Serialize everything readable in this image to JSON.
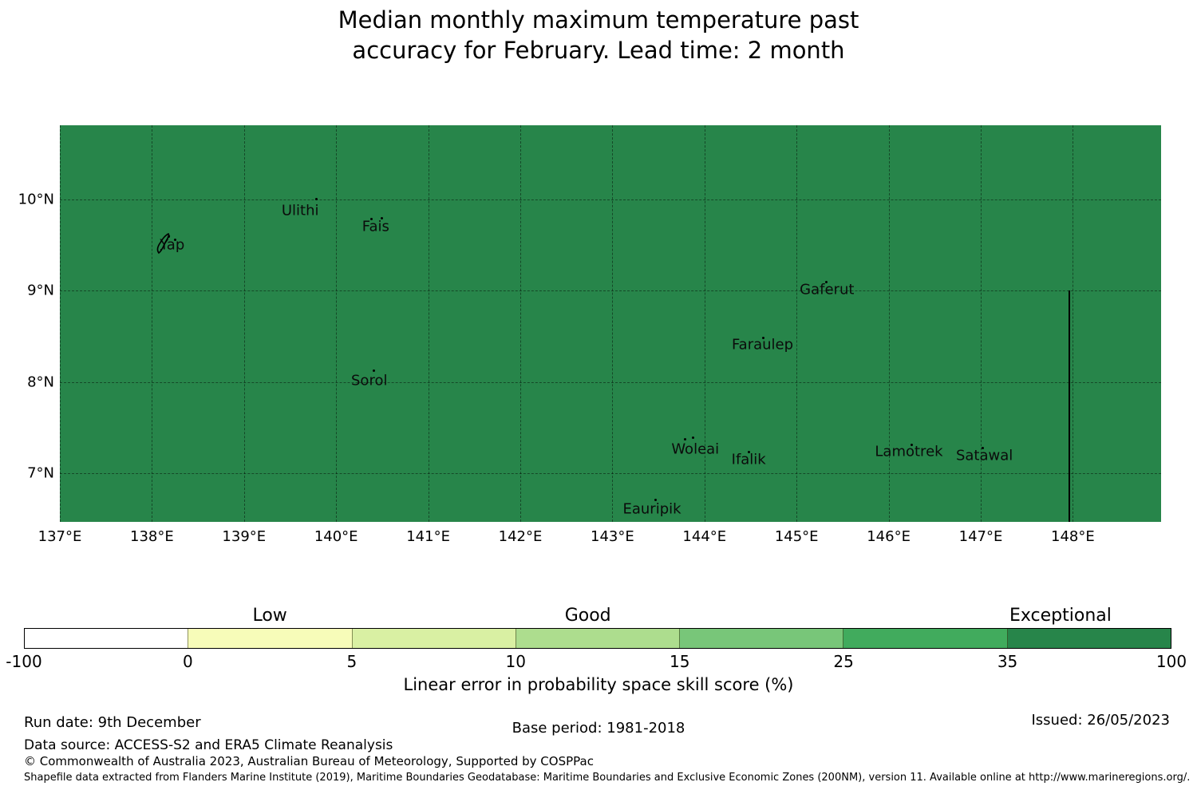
{
  "title": {
    "line1": "Median monthly maximum temperature past",
    "line2": "accuracy for February. Lead time: 2 month"
  },
  "map": {
    "fill_color": "#27854A",
    "x_ticks": [
      {
        "label": "137°E",
        "lon": 137
      },
      {
        "label": "138°E",
        "lon": 138
      },
      {
        "label": "139°E",
        "lon": 139
      },
      {
        "label": "140°E",
        "lon": 140
      },
      {
        "label": "141°E",
        "lon": 141
      },
      {
        "label": "142°E",
        "lon": 142
      },
      {
        "label": "143°E",
        "lon": 143
      },
      {
        "label": "144°E",
        "lon": 144
      },
      {
        "label": "145°E",
        "lon": 145
      },
      {
        "label": "146°E",
        "lon": 146
      },
      {
        "label": "147°E",
        "lon": 147
      },
      {
        "label": "148°E",
        "lon": 148
      }
    ],
    "y_ticks": [
      {
        "label": "10°N",
        "lat": 10
      },
      {
        "label": "9°N",
        "lat": 9
      },
      {
        "label": "8°N",
        "lat": 8
      },
      {
        "label": "7°N",
        "lat": 7
      }
    ],
    "islands": [
      {
        "name": "Yap",
        "lon": 138.22,
        "lat": 9.5,
        "marker": "blob",
        "dots": [
          [
            -6,
            -12
          ],
          [
            2,
            -8
          ]
        ]
      },
      {
        "name": "Ulithi",
        "lon": 139.61,
        "lat": 9.88,
        "dots": [
          [
            19,
            -16
          ]
        ]
      },
      {
        "name": "Fais",
        "lon": 140.43,
        "lat": 9.7,
        "dots": [
          [
            -7,
            -11
          ],
          [
            6,
            -12
          ]
        ]
      },
      {
        "name": "Sorol",
        "lon": 140.36,
        "lat": 8.02,
        "dots": [
          [
            4,
            -14
          ]
        ]
      },
      {
        "name": "Gaferut",
        "lon": 145.33,
        "lat": 9.01,
        "dots": [
          [
            -2,
            -11
          ]
        ]
      },
      {
        "name": "Faraulep",
        "lon": 144.63,
        "lat": 8.41,
        "dots": [
          [
            -1,
            -10
          ]
        ]
      },
      {
        "name": "Woleai",
        "lon": 143.9,
        "lat": 7.26,
        "dots": [
          [
            -14,
            -14
          ],
          [
            -4,
            -16
          ]
        ]
      },
      {
        "name": "Ifalik",
        "lon": 144.48,
        "lat": 7.15,
        "dots": [
          [
            -1,
            -11
          ]
        ]
      },
      {
        "name": "Eauripik",
        "lon": 143.43,
        "lat": 6.61,
        "dots": [
          [
            3,
            -13
          ]
        ]
      },
      {
        "name": "Lamotrek",
        "lon": 146.22,
        "lat": 7.24,
        "dots": [
          [
            2,
            -10
          ]
        ]
      },
      {
        "name": "Satawal",
        "lon": 147.04,
        "lat": 7.19,
        "dots": [
          [
            -4,
            -11
          ]
        ]
      }
    ],
    "boundary_line": {
      "lon": 147.95,
      "lat_from": 9.0,
      "lat_to": 6.47
    }
  },
  "colorbar": {
    "scale_values": [
      -100,
      0,
      5,
      10,
      15,
      25,
      35,
      100
    ],
    "tick_labels": [
      "-100",
      "0",
      "5",
      "10",
      "15",
      "25",
      "35",
      "100"
    ],
    "segment_colors": [
      "#ffffff",
      "#f7fcb9",
      "#d9f0a3",
      "#addd8e",
      "#78c679",
      "#41ab5d",
      "#27854A"
    ],
    "categories": [
      {
        "label": "Low",
        "at_value": 2.5
      },
      {
        "label": "Good",
        "at_value": 12.2
      },
      {
        "label": "Exceptional",
        "at_value": 56
      }
    ],
    "caption": "Linear error in probability space skill score (%)"
  },
  "footer": {
    "run_date": "Run date: 9th December",
    "base_period": "Base period: 1981-2018",
    "issued": "Issued: 26/05/2023",
    "data_source": "Data source: ACCESS-S2 and ERA5 Climate Reanalysis",
    "copyright": "© Commonwealth of Australia 2023, Australian Bureau of Meteorology, Supported by COSPPac",
    "shapefile_note": "Shapefile data extracted from Flanders Marine Institute (2019), Maritime Boundaries Geodatabase: Maritime Boundaries and Exclusive Economic Zones (200NM), version 11. Available online at http://www.marineregions.org/."
  }
}
